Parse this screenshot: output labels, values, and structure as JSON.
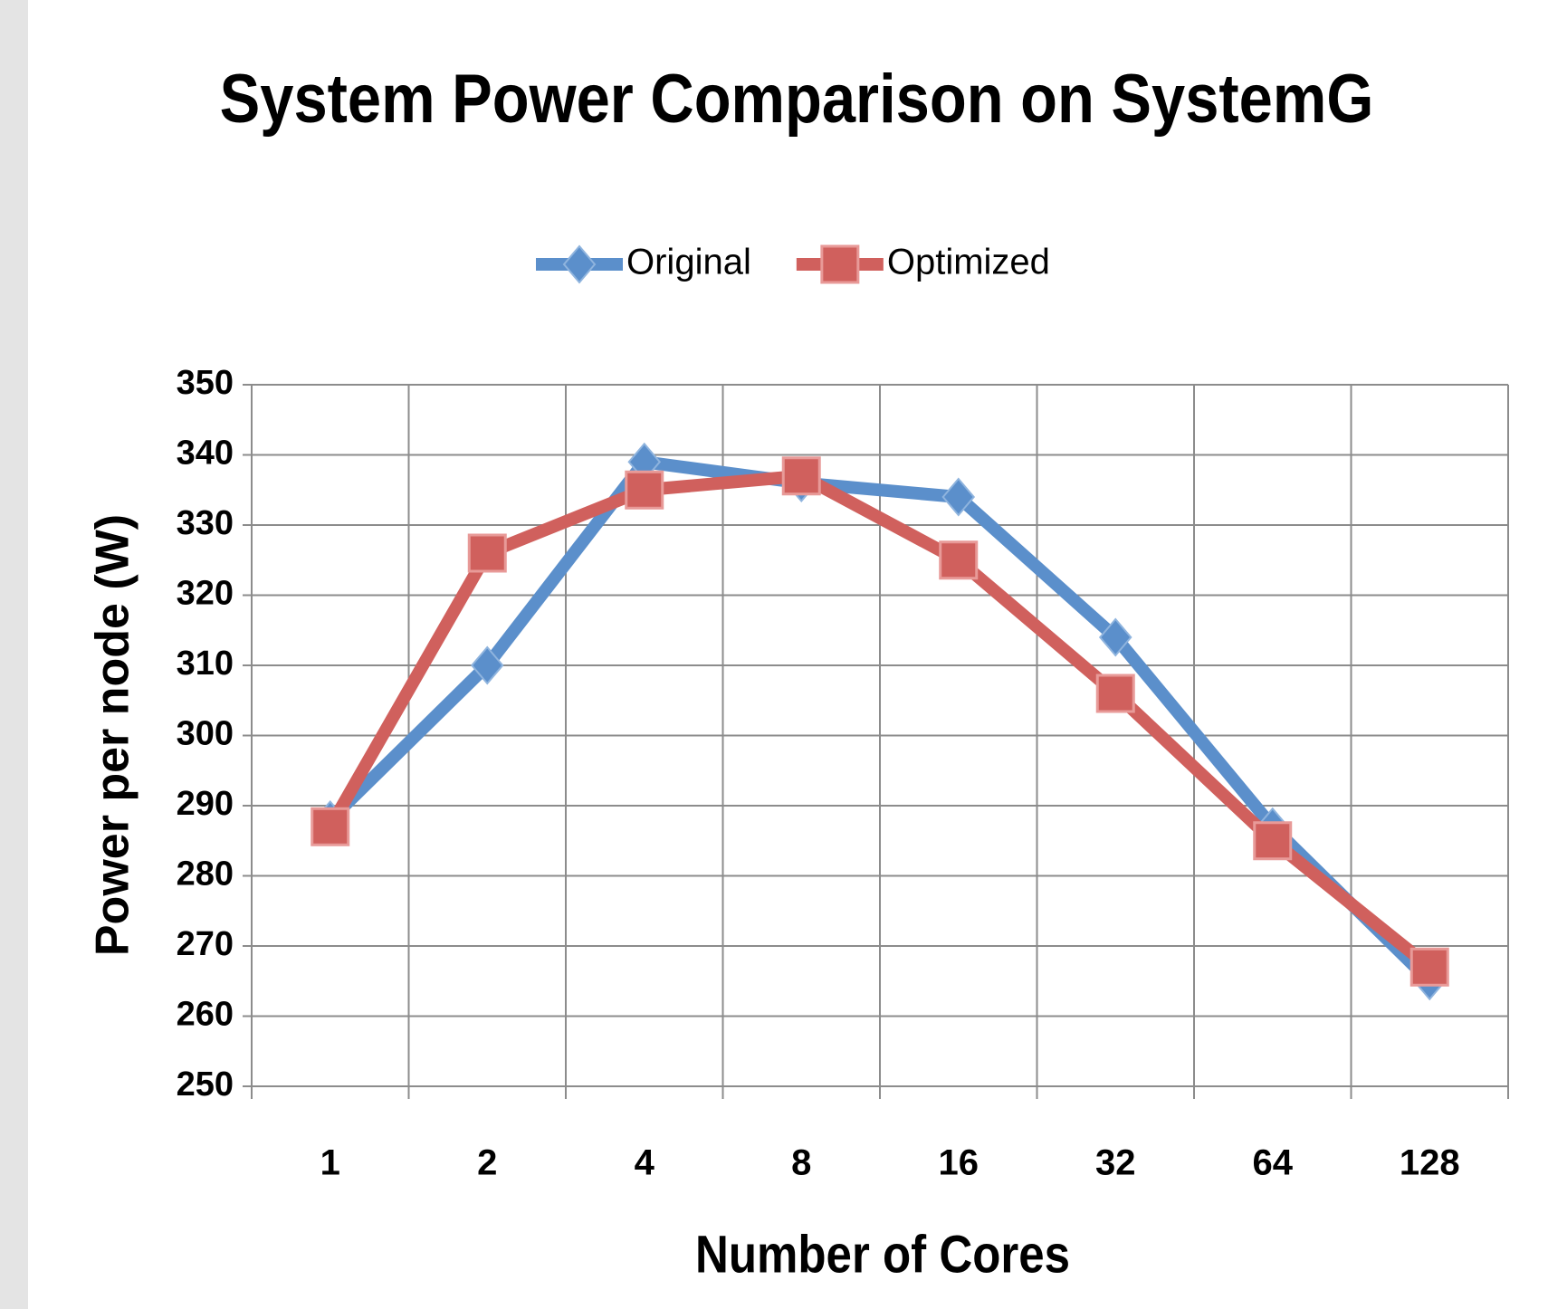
{
  "chart_data": {
    "type": "line",
    "title": "System Power Comparison on SystemG",
    "x_label": "Number of Cores",
    "y_label": "Power per node (W)",
    "categories": [
      "1",
      "2",
      "4",
      "8",
      "16",
      "32",
      "64",
      "128"
    ],
    "series": [
      {
        "name": "Original",
        "color": "#5b8fcb",
        "marker": "diamond",
        "values": [
          288,
          310,
          339,
          336,
          334,
          314,
          287,
          265
        ]
      },
      {
        "name": "Optimized",
        "color": "#d0605d",
        "marker": "square",
        "values": [
          287,
          326,
          335,
          337,
          325,
          306,
          285,
          267
        ]
      }
    ],
    "ylim": [
      250,
      350
    ],
    "yticks": [
      250,
      260,
      270,
      280,
      290,
      300,
      310,
      320,
      330,
      340,
      350
    ],
    "grid": true,
    "legend": "top"
  }
}
